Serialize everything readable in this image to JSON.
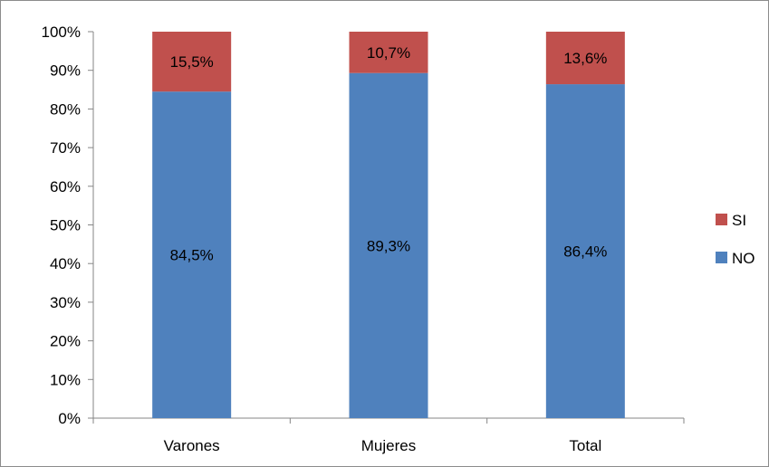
{
  "chart_data": {
    "type": "bar",
    "stacked": true,
    "categories": [
      "Varones",
      "Mujeres",
      "Total"
    ],
    "series": [
      {
        "name": "NO",
        "values": [
          84.5,
          89.3,
          86.4
        ],
        "labels": [
          "84,5%",
          "89,3%",
          "86,4%"
        ],
        "color": "#4F81BD"
      },
      {
        "name": "SI",
        "values": [
          15.5,
          10.7,
          13.6
        ],
        "labels": [
          "15,5%",
          "10,7%",
          "13,6%"
        ],
        "color": "#C0504D"
      }
    ],
    "ylim": [
      0,
      100
    ],
    "yticks": [
      "0%",
      "10%",
      "20%",
      "30%",
      "40%",
      "50%",
      "60%",
      "70%",
      "80%",
      "90%",
      "100%"
    ],
    "grid": false,
    "legend": {
      "position": "right",
      "order": [
        "SI",
        "NO"
      ]
    },
    "title": "",
    "xlabel": "",
    "ylabel": ""
  }
}
